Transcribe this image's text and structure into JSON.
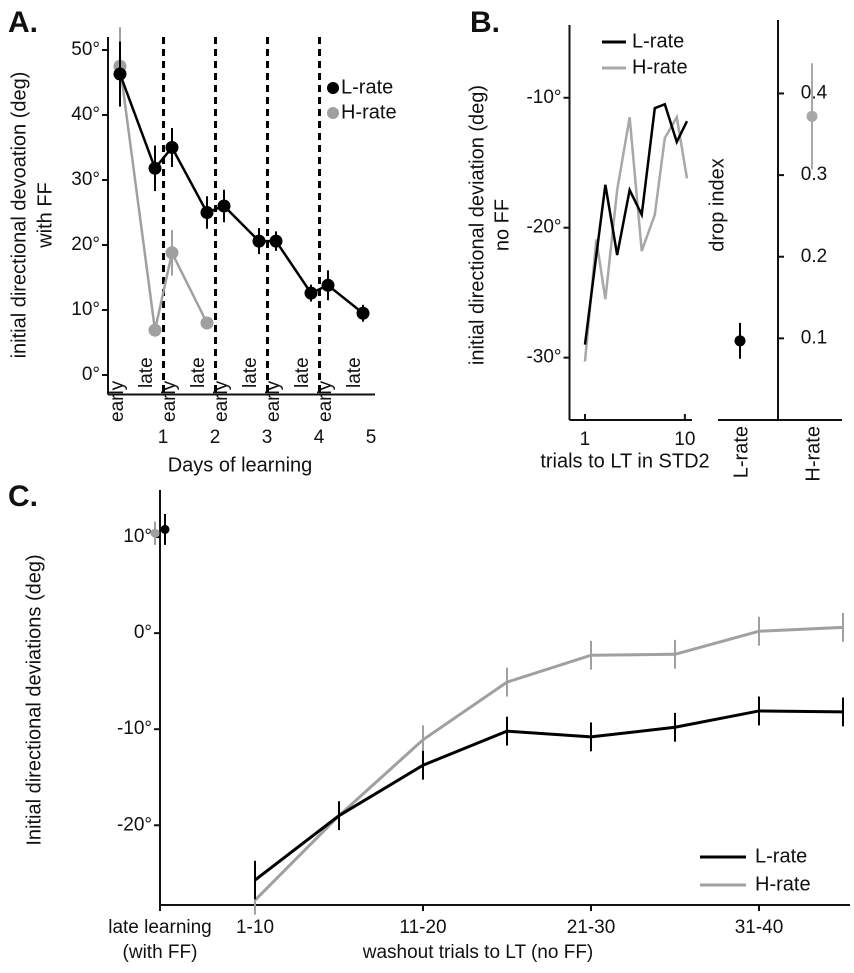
{
  "chart_data": [
    {
      "type": "line",
      "panel_label": "A.",
      "ylabel": [
        "initial directional devoation (deg)",
        "with FF"
      ],
      "xlabel": "Days of learning",
      "categories": [
        "early",
        "late",
        "early",
        "late",
        "early",
        "late",
        "early",
        "late",
        "early",
        "late"
      ],
      "days": [
        1,
        2,
        3,
        4,
        5
      ],
      "ylim": [
        -3,
        52
      ],
      "yticks": [
        {
          "value": 0,
          "label": "0°"
        },
        {
          "value": 10,
          "label": "10°"
        },
        {
          "value": 20,
          "label": "20°"
        },
        {
          "value": 30,
          "label": "30°"
        },
        {
          "value": 40,
          "label": "40°"
        },
        {
          "value": 50,
          "label": "50°"
        }
      ],
      "legend": "upper right",
      "series": [
        {
          "name": "L-rate",
          "color": "#000000",
          "values": [
            46.3,
            31.8,
            35,
            25,
            26,
            20.6,
            20.6,
            12.6,
            13.8,
            9.5
          ],
          "errors": [
            5,
            3.5,
            3,
            2.5,
            2.5,
            2,
            1.5,
            1.3,
            2.3,
            1.3
          ]
        },
        {
          "name": "H-rate",
          "color": "#a0a0a0",
          "values": [
            47.5,
            6.9,
            18.8,
            8,
            null,
            null,
            null,
            null,
            null,
            null
          ],
          "errors": [
            6,
            1,
            3.5,
            1,
            null,
            null,
            null,
            null,
            null,
            null
          ]
        }
      ]
    },
    {
      "type": "line",
      "panel_label": "B.",
      "ylabel": [
        "initial directional deviation (deg)",
        "no FF"
      ],
      "xlabel": "trials to LT in STD2",
      "xscale": "log",
      "x": [
        1,
        1.3,
        1.6,
        2.1,
        2.8,
        3.7,
        5,
        6.3,
        8.3,
        10.5
      ],
      "xlim": [
        0.7,
        11
      ],
      "xticks": [
        1,
        10
      ],
      "ylim": [
        -34.8,
        -4.4
      ],
      "yticks": [
        {
          "value": -10,
          "label": "-10°"
        },
        {
          "value": -20,
          "label": "-20°"
        },
        {
          "value": -30,
          "label": "-30°"
        }
      ],
      "legend": "upper left",
      "series": [
        {
          "name": "L-rate",
          "color": "#000000",
          "values": [
            -29,
            -22.1,
            -16.7,
            -22.1,
            -17.1,
            -19,
            -10.8,
            -10.5,
            -13.4,
            -11.8
          ]
        },
        {
          "name": "H-rate",
          "color": "#a8a8a8",
          "values": [
            -30.3,
            -20.9,
            -25.5,
            -17.1,
            -11.5,
            -21.8,
            -19,
            -13.1,
            -11.5,
            -16.2
          ]
        }
      ]
    },
    {
      "type": "dot",
      "ylabel": "drop index",
      "categories": [
        "L-rate",
        "H-rate"
      ],
      "values": [
        0.097,
        0.372
      ],
      "errors": [
        0.022,
        0.065
      ],
      "colors": [
        "#000000",
        "#a8a8a8"
      ],
      "ylim": [
        0,
        0.49
      ],
      "yticks": [
        0.1,
        0.2,
        0.3,
        0.4
      ]
    },
    {
      "type": "line",
      "panel_label": "C.",
      "ylabel": "Initial directional deviations (deg)",
      "xlabel": "washout  trials to LT (no FF)",
      "categories": [
        "late learning",
        "1-10",
        null,
        "11-20",
        null,
        "21-30",
        null,
        "31-40",
        null
      ],
      "x_note": "(with FF)",
      "ylim": [
        -28.3,
        14.9
      ],
      "yticks": [
        {
          "value": 10,
          "label": "10°"
        },
        {
          "value": 0,
          "label": "0°"
        },
        {
          "value": -10,
          "label": "-10°"
        },
        {
          "value": -20,
          "label": "-20°"
        }
      ],
      "legend": "lower right",
      "series": [
        {
          "name": "L-rate",
          "color": "#000000",
          "values": [
            10.8,
            -25.7,
            -19,
            -13.75,
            -10.2,
            -10.8,
            -9.8,
            -8.1,
            -8.2
          ],
          "errors": [
            1.6,
            2,
            1.5,
            1.5,
            1.5,
            1.5,
            1.5,
            1.5,
            1.5
          ]
        },
        {
          "name": "H-rate",
          "color": "#a0a0a0",
          "values": [
            10.4,
            -27.8,
            -19,
            -11.1,
            -5.1,
            -2.3,
            -2.2,
            0.2,
            0.6
          ],
          "errors": [
            1.2,
            1.5,
            1.5,
            1.5,
            1.5,
            1.5,
            1.5,
            1.5,
            1.5
          ]
        }
      ]
    }
  ]
}
